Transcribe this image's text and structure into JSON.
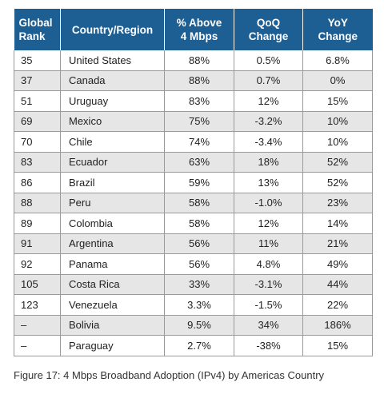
{
  "table": {
    "headers": [
      "Global\nRank",
      "Country/Region",
      "% Above\n4 Mbps",
      "QoQ\nChange",
      "YoY\nChange"
    ],
    "header_color": "#1d5e93",
    "stripe_color": "#e6e6e6",
    "rows": [
      [
        "35",
        "United States",
        "88%",
        "0.5%",
        "6.8%"
      ],
      [
        "37",
        "Canada",
        "88%",
        "0.7%",
        "0%"
      ],
      [
        "51",
        "Uruguay",
        "83%",
        "12%",
        "15%"
      ],
      [
        "69",
        "Mexico",
        "75%",
        "-3.2%",
        "10%"
      ],
      [
        "70",
        "Chile",
        "74%",
        "-3.4%",
        "10%"
      ],
      [
        "83",
        "Ecuador",
        "63%",
        "18%",
        "52%"
      ],
      [
        "86",
        "Brazil",
        "59%",
        "13%",
        "52%"
      ],
      [
        "88",
        "Peru",
        "58%",
        "-1.0%",
        "23%"
      ],
      [
        "89",
        "Colombia",
        "58%",
        "12%",
        "14%"
      ],
      [
        "91",
        "Argentina",
        "56%",
        "11%",
        "21%"
      ],
      [
        "92",
        "Panama",
        "56%",
        "4.8%",
        "49%"
      ],
      [
        "105",
        "Costa Rica",
        "33%",
        "-3.1%",
        "44%"
      ],
      [
        "123",
        "Venezuela",
        "3.3%",
        "-1.5%",
        "22%"
      ],
      [
        "–",
        "Bolivia",
        "9.5%",
        "34%",
        "186%"
      ],
      [
        "–",
        "Paraguay",
        "2.7%",
        "-38%",
        "15%"
      ]
    ]
  },
  "caption": "Figure 17: 4 Mbps Broadband Adoption (IPv4) by Americas Country"
}
